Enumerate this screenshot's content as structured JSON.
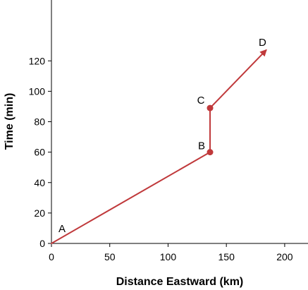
{
  "chart_data": {
    "type": "line",
    "xlabel": "Distance Eastward (km)",
    "ylabel": "Time (min)",
    "xlim": [
      0,
      220
    ],
    "ylim": [
      0,
      160
    ],
    "xticks": [
      0,
      50,
      100,
      150,
      200
    ],
    "yticks": [
      0,
      20,
      40,
      60,
      80,
      100,
      120
    ],
    "grid": false,
    "series_color": "#c0393b",
    "points": [
      {
        "label": "A",
        "x": 0,
        "y": 0
      },
      {
        "label": "B",
        "x": 136,
        "y": 60
      },
      {
        "label": "C",
        "x": 136,
        "y": 89
      },
      {
        "label": "D",
        "x": 184,
        "y": 127
      }
    ],
    "marked_points": [
      "B",
      "C"
    ],
    "arrow_end": "D"
  }
}
